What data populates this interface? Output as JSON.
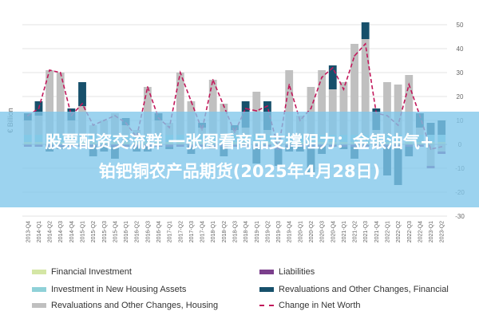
{
  "chart_data": {
    "type": "bar",
    "ylabel": "€ Billion",
    "ylim": [
      -30,
      50
    ],
    "yticks": [
      -30,
      -20,
      -10,
      0,
      10,
      20,
      30,
      40,
      50
    ],
    "categories": [
      "2013-Q4",
      "2014-Q1",
      "2014-Q2",
      "2014-Q3",
      "2014-Q4",
      "2015-Q1",
      "2015-Q2",
      "2015-Q3",
      "2015-Q4",
      "2016-Q1",
      "2016-Q2",
      "2016-Q3",
      "2016-Q4",
      "2017-Q1",
      "2017-Q2",
      "2017-Q3",
      "2017-Q4",
      "2018-Q1",
      "2018-Q2",
      "2018-Q3",
      "2018-Q4",
      "2019-Q1",
      "2019-Q2",
      "2019-Q3",
      "2019-Q4",
      "2020-Q1",
      "2020-Q2",
      "2020-Q3",
      "2020-Q4",
      "2021-Q1",
      "2021-Q2",
      "2021-Q3",
      "2021-Q4",
      "2022-Q1",
      "2022-Q2",
      "2022-Q3",
      "2022-Q4",
      "2023-Q1",
      "2023-Q2"
    ],
    "series": [
      {
        "name": "Financial Investment",
        "color": "#d4e6a5",
        "values": [
          1,
          1,
          1,
          1,
          1,
          1,
          1,
          1,
          1,
          1,
          1,
          1,
          1,
          1,
          1,
          1,
          1,
          1,
          1,
          1,
          1,
          1,
          1,
          1,
          1,
          1,
          1,
          1,
          1,
          1,
          1,
          1,
          1,
          1,
          1,
          1,
          1,
          1,
          1
        ]
      },
      {
        "name": "Investment in New Housing Assets",
        "color": "#8fd1d8",
        "values": [
          3,
          3,
          3,
          3,
          3,
          3,
          3,
          3,
          3,
          3,
          3,
          3,
          3,
          3,
          3,
          3,
          3,
          3,
          3,
          3,
          3,
          3,
          3,
          3,
          3,
          3,
          3,
          3,
          3,
          3,
          3,
          3,
          3,
          3,
          3,
          3,
          3,
          3,
          3
        ]
      },
      {
        "name": "Revaluations and Other Changes, Housing",
        "color": "#c0c0c0",
        "values": [
          6,
          8,
          27,
          26,
          6,
          12,
          4,
          6,
          9,
          4,
          2,
          20,
          6,
          5,
          26,
          14,
          3,
          23,
          13,
          2,
          3,
          18,
          2,
          -1,
          27,
          8,
          20,
          27,
          19,
          22,
          38,
          40,
          2,
          22,
          21,
          25,
          3,
          -9,
          -3
        ]
      },
      {
        "name": "Liabilities",
        "color": "#7b3f8c",
        "values": [
          -1,
          -1,
          -1,
          -1,
          -1,
          -1,
          -1,
          -1,
          -1,
          -1,
          -1,
          -1,
          -1,
          -1,
          -1,
          -1,
          -1,
          -1,
          -1,
          -1,
          -1,
          -1,
          -1,
          -1,
          -1,
          -1,
          -1,
          -1,
          -1,
          -1,
          -1,
          -1,
          -1,
          -1,
          -1,
          -1,
          -1,
          -1,
          -1
        ]
      },
      {
        "name": "Revaluations and Other Changes, Financial",
        "color": "#17506b",
        "values": [
          3,
          6,
          -2,
          -1,
          5,
          10,
          -4,
          -2,
          -5,
          3,
          -2,
          -2,
          3,
          -1,
          0,
          -3,
          2,
          -1,
          -4,
          2,
          11,
          -7,
          12,
          -7,
          -2,
          -2,
          -11,
          -3,
          10,
          -1,
          -5,
          7,
          9,
          -12,
          -16,
          -4,
          6,
          5,
          6
        ]
      },
      {
        "name": "Change in Net Worth",
        "color": "#c2185b",
        "values": [
          12,
          15,
          31,
          30,
          12,
          17,
          8,
          10,
          12,
          9,
          3,
          24,
          11,
          7,
          30,
          18,
          6,
          27,
          16,
          5,
          15,
          14,
          16,
          -2,
          25,
          10,
          15,
          28,
          32,
          23,
          37,
          42,
          13,
          12,
          8,
          25,
          12,
          -2,
          -1
        ]
      }
    ]
  },
  "banner": {
    "line1": "股票配资交流群 一张图看商品支撑阻力：金银油气+",
    "line2": "铂钯铜农产品期货(2025年4月28日)"
  },
  "legend": {
    "items": [
      {
        "label": "Financial Investment",
        "color": "#d4e6a5",
        "style": "box"
      },
      {
        "label": "Liabilities",
        "color": "#7b3f8c",
        "style": "box"
      },
      {
        "label": "Investment in New Housing Assets",
        "color": "#8fd1d8",
        "style": "box"
      },
      {
        "label": "Revaluations and Other Changes, Financial",
        "color": "#17506b",
        "style": "box"
      },
      {
        "label": "Revaluations and Other Changes, Housing",
        "color": "#c0c0c0",
        "style": "box"
      },
      {
        "label": "Change in Net Worth",
        "color": "#c2185b",
        "style": "dash"
      }
    ]
  }
}
